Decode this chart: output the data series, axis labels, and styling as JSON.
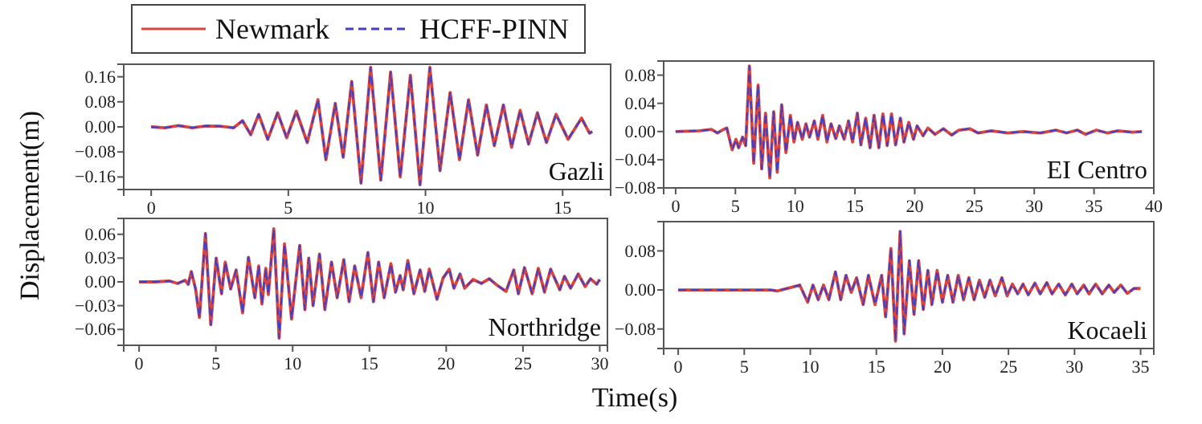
{
  "chart_data": [
    {
      "type": "line",
      "title": "Gazli",
      "ylabel": "Displacement(m)",
      "legend": "top",
      "xlim": [
        -1,
        16.75
      ],
      "ylim": [
        -0.2,
        0.2
      ],
      "xticks": [
        0,
        5,
        10,
        15
      ],
      "yticks": [
        {
          "value": 0.16,
          "label": "0.16"
        },
        {
          "value": 0.08,
          "label": "0.08"
        },
        {
          "value": 0,
          "label": "0.00"
        },
        {
          "value": -0.08,
          "label": "−0.08"
        },
        {
          "value": -0.16,
          "label": "−0.16"
        }
      ],
      "x": [
        0,
        0.5,
        1,
        1.5,
        2,
        2.5,
        3,
        3.33,
        3.63,
        3.92,
        4.25,
        4.61,
        4.94,
        5.29,
        5.69,
        6.08,
        6.37,
        6.71,
        7.0,
        7.31,
        7.65,
        8.0,
        8.37,
        8.73,
        9.08,
        9.45,
        9.8,
        10.16,
        10.53,
        10.9,
        11.24,
        11.57,
        11.9,
        12.22,
        12.51,
        12.84,
        13.14,
        13.45,
        13.76,
        14.08,
        14.41,
        14.76,
        15.2,
        15.69,
        15.98,
        16.08
      ],
      "series": [
        {
          "name": "Newmark",
          "color": "#d9443f",
          "line_style": "solid",
          "values": [
            0,
            -0.003,
            0.004,
            -0.003,
            0.003,
            0.002,
            -0.003,
            0.02,
            -0.025,
            0.04,
            -0.04,
            0.045,
            -0.035,
            0.05,
            -0.05,
            0.087,
            -0.105,
            0.075,
            -0.097,
            0.145,
            -0.18,
            0.19,
            -0.17,
            0.175,
            -0.16,
            0.165,
            -0.185,
            0.19,
            -0.14,
            0.11,
            -0.105,
            0.087,
            -0.09,
            0.07,
            -0.06,
            0.07,
            -0.065,
            0.053,
            -0.055,
            0.045,
            -0.05,
            0.04,
            -0.04,
            0.028,
            -0.02,
            -0.015
          ]
        },
        {
          "name": "HCFF-PINN",
          "color": "#3f3fc8",
          "line_style": "dashed",
          "values": [
            0,
            -0.003,
            0.004,
            -0.003,
            0.003,
            0.002,
            -0.003,
            0.02,
            -0.025,
            0.04,
            -0.04,
            0.045,
            -0.035,
            0.05,
            -0.05,
            0.087,
            -0.105,
            0.075,
            -0.097,
            0.145,
            -0.18,
            0.19,
            -0.17,
            0.175,
            -0.16,
            0.165,
            -0.185,
            0.19,
            -0.14,
            0.11,
            -0.105,
            0.087,
            -0.09,
            0.07,
            -0.06,
            0.07,
            -0.065,
            0.053,
            -0.055,
            0.045,
            -0.05,
            0.04,
            -0.04,
            0.028,
            -0.02,
            -0.015
          ]
        }
      ]
    },
    {
      "type": "line",
      "title": "EI Centro",
      "xlim": [
        -1,
        40
      ],
      "ylim": [
        -0.08,
        0.1
      ],
      "xticks": [
        0,
        5,
        10,
        15,
        20,
        25,
        30,
        35,
        40
      ],
      "yticks": [
        {
          "value": 0.08,
          "label": "0.08"
        },
        {
          "value": 0.04,
          "label": "0.04"
        },
        {
          "value": 0,
          "label": "0.00"
        },
        {
          "value": -0.04,
          "label": "−0.04"
        },
        {
          "value": -0.08,
          "label": "−0.08"
        }
      ],
      "x": [
        0,
        2,
        3,
        3.5,
        4,
        4.28,
        4.73,
        5.05,
        5.27,
        5.6,
        5.86,
        6.17,
        6.53,
        6.9,
        7.2,
        7.52,
        7.88,
        8.2,
        8.5,
        8.87,
        9.23,
        9.6,
        9.9,
        10.2,
        10.6,
        10.9,
        11.2,
        11.6,
        11.9,
        12.3,
        12.66,
        13.0,
        13.4,
        13.7,
        14.1,
        14.46,
        14.8,
        15.2,
        15.5,
        15.9,
        16.26,
        16.6,
        17.0,
        17.34,
        17.7,
        18.06,
        18.4,
        18.8,
        19.1,
        19.5,
        19.9,
        20.2,
        20.7,
        21.1,
        21.7,
        22.4,
        23.1,
        23.7,
        24.6,
        25.3,
        26.4,
        27.8,
        29.1,
        30.5,
        31.8,
        32.7,
        33.6,
        34.3,
        35.2,
        36.1,
        37.0,
        38.2,
        39.0
      ],
      "series": [
        {
          "color": "#d9443f",
          "line_style": "solid",
          "values": [
            0,
            0.001,
            0.003,
            -0.002,
            0.003,
            0.005,
            -0.026,
            -0.011,
            -0.023,
            -0.008,
            -0.02,
            0.093,
            -0.045,
            0.066,
            -0.053,
            0.026,
            -0.066,
            0.028,
            -0.058,
            0.038,
            -0.03,
            0.023,
            -0.015,
            0.013,
            -0.011,
            0.011,
            -0.008,
            0.015,
            -0.011,
            0.023,
            -0.015,
            0.011,
            -0.01,
            0.008,
            -0.011,
            0.015,
            -0.015,
            0.026,
            -0.019,
            0.019,
            -0.023,
            0.023,
            -0.023,
            0.025,
            -0.02,
            0.025,
            -0.019,
            0.019,
            -0.015,
            0.013,
            -0.011,
            0.008,
            -0.006,
            0.005,
            -0.004,
            0.004,
            -0.005,
            0.002,
            0.004,
            -0.002,
            0.001,
            -0.002,
            0,
            -0.002,
            0.002,
            -0.002,
            0.002,
            -0.004,
            0.002,
            -0.002,
            0.001,
            -0.001,
            0
          ]
        },
        {
          "color": "#3f3fc8",
          "line_style": "dashed",
          "values": [
            0,
            0.001,
            0.003,
            -0.002,
            0.003,
            0.005,
            -0.026,
            -0.011,
            -0.023,
            -0.008,
            -0.02,
            0.093,
            -0.045,
            0.066,
            -0.053,
            0.026,
            -0.066,
            0.028,
            -0.058,
            0.038,
            -0.03,
            0.023,
            -0.015,
            0.013,
            -0.011,
            0.011,
            -0.008,
            0.015,
            -0.011,
            0.023,
            -0.015,
            0.011,
            -0.01,
            0.008,
            -0.011,
            0.015,
            -0.015,
            0.026,
            -0.019,
            0.019,
            -0.023,
            0.023,
            -0.023,
            0.025,
            -0.02,
            0.025,
            -0.019,
            0.019,
            -0.015,
            0.013,
            -0.011,
            0.008,
            -0.006,
            0.005,
            -0.004,
            0.004,
            -0.005,
            0.002,
            0.004,
            -0.002,
            0.001,
            -0.002,
            0,
            -0.002,
            0.002,
            -0.002,
            0.002,
            -0.004,
            0.002,
            -0.002,
            0.001,
            -0.001,
            0
          ]
        }
      ]
    },
    {
      "type": "line",
      "title": "Northridge",
      "xlabel": "Time(s)",
      "xlim": [
        -1,
        30.5
      ],
      "ylim": [
        -0.08,
        0.08
      ],
      "xticks": [
        0,
        5,
        10,
        15,
        20,
        25,
        30
      ],
      "yticks": [
        {
          "value": 0.06,
          "label": "0.06"
        },
        {
          "value": 0.03,
          "label": "0.03"
        },
        {
          "value": 0,
          "label": "0.00"
        },
        {
          "value": -0.03,
          "label": "−0.03"
        },
        {
          "value": -0.06,
          "label": "−0.06"
        }
      ],
      "x": [
        0,
        1,
        2,
        2.5,
        3,
        3.2,
        3.4,
        3.68,
        3.93,
        4.32,
        4.67,
        5.02,
        5.37,
        5.61,
        5.96,
        6.32,
        6.74,
        7.12,
        7.54,
        7.79,
        8.0,
        8.25,
        8.42,
        8.77,
        9.12,
        9.47,
        9.93,
        10.46,
        10.8,
        11.05,
        11.33,
        11.75,
        12.1,
        12.53,
        12.9,
        13.33,
        13.68,
        14.04,
        14.46,
        14.9,
        15.26,
        15.6,
        15.96,
        16.4,
        16.7,
        17.0,
        17.2,
        17.5,
        17.9,
        18.3,
        18.6,
        18.9,
        19.4,
        19.8,
        20.2,
        20.5,
        20.9,
        21.2,
        21.75,
        22.3,
        22.8,
        23.3,
        23.9,
        24.4,
        24.7,
        25.1,
        25.6,
        26.0,
        26.4,
        26.8,
        27.4,
        27.7,
        28.1,
        28.6,
        29.05,
        29.4,
        29.8,
        30
      ],
      "series": [
        {
          "color": "#d9443f",
          "line_style": "solid",
          "values": [
            0,
            0,
            0.001,
            -0.002,
            0.002,
            -0.003,
            0.013,
            -0.009,
            -0.045,
            0.061,
            -0.054,
            0.03,
            -0.015,
            0.025,
            -0.009,
            0.015,
            -0.039,
            0.031,
            -0.02,
            0.02,
            -0.028,
            0.017,
            -0.016,
            0.067,
            -0.071,
            0.048,
            -0.047,
            0.046,
            -0.035,
            0.03,
            -0.03,
            0.035,
            -0.035,
            0.025,
            -0.02,
            0.028,
            -0.025,
            0.02,
            -0.02,
            0.037,
            -0.025,
            0.025,
            -0.02,
            0.023,
            -0.013,
            0.008,
            -0.01,
            0.027,
            -0.015,
            0.015,
            -0.012,
            0.016,
            -0.022,
            0.005,
            0.016,
            -0.008,
            0.01,
            -0.008,
            0.003,
            -0.002,
            0.004,
            -0.004,
            -0.012,
            0.015,
            -0.015,
            0.018,
            -0.015,
            0.017,
            -0.013,
            0.016,
            -0.01,
            0.007,
            -0.008,
            0.01,
            -0.006,
            0.004,
            -0.003,
            0.003
          ]
        },
        {
          "color": "#3f3fc8",
          "line_style": "dashed",
          "values": [
            0,
            0,
            0.001,
            -0.002,
            0.002,
            -0.003,
            0.013,
            -0.009,
            -0.045,
            0.061,
            -0.054,
            0.03,
            -0.015,
            0.025,
            -0.009,
            0.015,
            -0.039,
            0.031,
            -0.02,
            0.02,
            -0.028,
            0.017,
            -0.016,
            0.067,
            -0.071,
            0.048,
            -0.047,
            0.046,
            -0.035,
            0.03,
            -0.03,
            0.035,
            -0.035,
            0.025,
            -0.02,
            0.028,
            -0.025,
            0.02,
            -0.02,
            0.037,
            -0.025,
            0.025,
            -0.02,
            0.023,
            -0.013,
            0.008,
            -0.01,
            0.027,
            -0.015,
            0.015,
            -0.012,
            0.016,
            -0.022,
            0.005,
            0.016,
            -0.008,
            0.01,
            -0.008,
            0.003,
            -0.002,
            0.004,
            -0.004,
            -0.012,
            0.015,
            -0.015,
            0.018,
            -0.015,
            0.017,
            -0.013,
            0.016,
            -0.01,
            0.007,
            -0.008,
            0.01,
            -0.006,
            0.004,
            -0.003,
            0.003
          ]
        }
      ]
    },
    {
      "type": "line",
      "title": "Kocaeli",
      "xlim": [
        -1.1,
        36
      ],
      "ylim": [
        -0.12,
        0.14
      ],
      "xticks": [
        0,
        5,
        10,
        15,
        20,
        25,
        30,
        35
      ],
      "yticks": [
        {
          "value": 0.08,
          "label": "0.08"
        },
        {
          "value": 0,
          "label": "0.00"
        },
        {
          "value": -0.08,
          "label": "−0.08"
        }
      ],
      "x": [
        0,
        7,
        7.5,
        8.5,
        9.2,
        9.8,
        10.2,
        10.6,
        11.0,
        11.4,
        11.9,
        12.3,
        12.7,
        13.1,
        13.5,
        14.0,
        14.4,
        14.9,
        15.4,
        15.7,
        16.1,
        16.45,
        16.8,
        17.1,
        17.5,
        17.85,
        18.2,
        18.55,
        18.9,
        19.2,
        19.6,
        20.0,
        20.4,
        20.8,
        21.2,
        21.6,
        22.0,
        22.4,
        22.8,
        23.2,
        23.6,
        24.0,
        24.5,
        24.9,
        25.3,
        25.7,
        26.1,
        26.5,
        27,
        27.4,
        27.9,
        28.3,
        28.8,
        29.3,
        29.8,
        30.2,
        30.7,
        31.1,
        31.6,
        32.1,
        32.6,
        33.0,
        33.5,
        34.0,
        34.5,
        35
      ],
      "series": [
        {
          "color": "#d9443f",
          "line_style": "solid",
          "values": [
            0,
            0,
            -0.002,
            0.005,
            0.01,
            -0.025,
            0.01,
            -0.02,
            0.01,
            -0.02,
            0.037,
            -0.02,
            0.03,
            -0.005,
            0.025,
            -0.03,
            0.03,
            -0.03,
            0.03,
            -0.055,
            0.085,
            -0.105,
            0.12,
            -0.09,
            0.06,
            -0.05,
            0.06,
            -0.04,
            0.04,
            -0.03,
            0.04,
            -0.025,
            0.03,
            -0.025,
            0.03,
            -0.02,
            0.025,
            -0.02,
            0.02,
            -0.015,
            0.02,
            -0.012,
            0.025,
            -0.012,
            0.012,
            -0.008,
            0.012,
            -0.01,
            0.014,
            -0.008,
            0.015,
            -0.008,
            0.012,
            -0.01,
            0.012,
            -0.008,
            0.01,
            -0.008,
            0.012,
            -0.008,
            0.01,
            -0.005,
            0.01,
            -0.007,
            0.003,
            0.003
          ]
        },
        {
          "color": "#3f3fc8",
          "line_style": "dashed",
          "values": [
            0,
            0,
            -0.002,
            0.005,
            0.01,
            -0.025,
            0.01,
            -0.02,
            0.01,
            -0.02,
            0.037,
            -0.02,
            0.03,
            -0.005,
            0.025,
            -0.03,
            0.03,
            -0.03,
            0.03,
            -0.055,
            0.085,
            -0.105,
            0.12,
            -0.09,
            0.06,
            -0.05,
            0.06,
            -0.04,
            0.04,
            -0.03,
            0.04,
            -0.025,
            0.03,
            -0.025,
            0.03,
            -0.02,
            0.025,
            -0.02,
            0.02,
            -0.015,
            0.02,
            -0.012,
            0.025,
            -0.012,
            0.012,
            -0.008,
            0.012,
            -0.01,
            0.014,
            -0.008,
            0.015,
            -0.008,
            0.012,
            -0.01,
            0.012,
            -0.008,
            0.01,
            -0.008,
            0.012,
            -0.008,
            0.01,
            -0.005,
            0.01,
            -0.007,
            0.003,
            0.003
          ]
        }
      ]
    }
  ]
}
